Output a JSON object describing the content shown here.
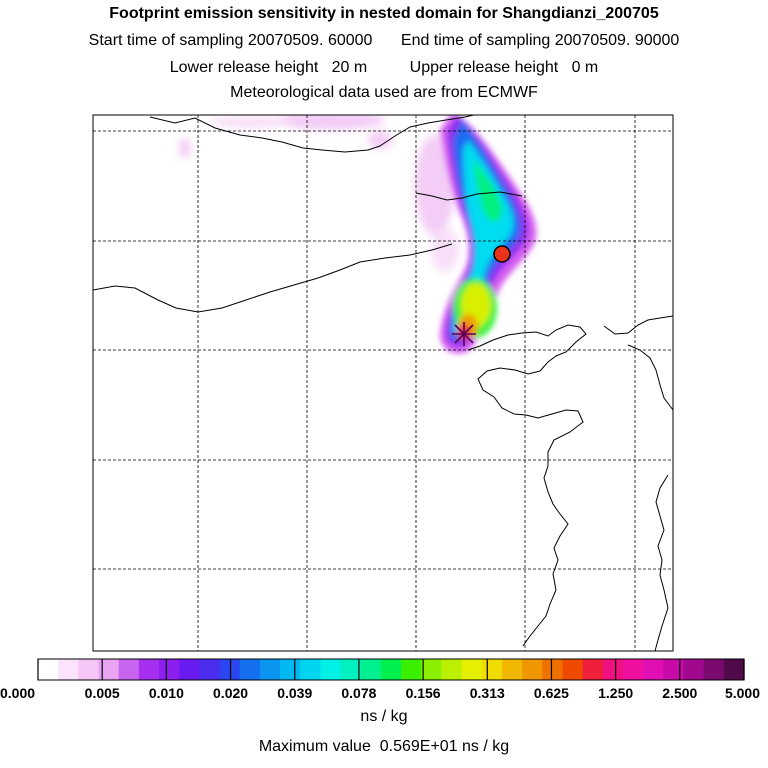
{
  "header": {
    "title": "Footprint emission sensitivity in nested domain for Shangdianzi_200705",
    "start_label": "Start time of sampling",
    "start_value": "20070509. 60000",
    "end_label": "End time of sampling",
    "end_value": "20070509. 90000",
    "lower_label": "Lower release height",
    "lower_value": "20 m",
    "upper_label": "Upper release height",
    "upper_value": "0 m",
    "met_line": "Meteorological data used are from ECMWF"
  },
  "legend": {
    "tick_labels": [
      "0.000",
      "0.005",
      "0.010",
      "0.020",
      "0.039",
      "0.078",
      "0.156",
      "0.313",
      "0.625",
      "1.250",
      "2.500",
      "5.000"
    ],
    "colors": [
      "#ffffff",
      "#fbe3fb",
      "#f6c6f6",
      "#e9a3f3",
      "#c765f0",
      "#a62ff0",
      "#8c1ef0",
      "#6a1bf0",
      "#4b2df0",
      "#2b45f0",
      "#1570f0",
      "#0a95f0",
      "#00b8f0",
      "#00d5f0",
      "#00f0e6",
      "#00f0c0",
      "#00f090",
      "#00f050",
      "#3af000",
      "#8af000",
      "#bcf000",
      "#e4f000",
      "#f0dc00",
      "#f0b800",
      "#f09600",
      "#f07000",
      "#f04a00",
      "#f0203a",
      "#f01080",
      "#f0109f",
      "#e00fb4",
      "#c80aa8",
      "#a0088e",
      "#7a0a6e",
      "#500a4a"
    ],
    "units": "ns / kg"
  },
  "footer": {
    "max_label": "Maximum value",
    "max_value": "0.569E+01 ns / kg"
  },
  "map": {
    "station_color": "#e8321a",
    "release_marker_color": "#5a0050"
  }
}
